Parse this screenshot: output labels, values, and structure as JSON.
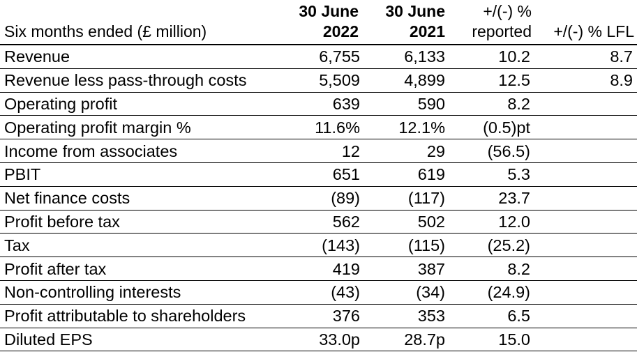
{
  "table": {
    "header": {
      "label": "Six months ended (£ million)",
      "col_2022": {
        "line1": "30 June",
        "line2": "2022"
      },
      "col_2021": {
        "line1": "30 June",
        "line2": "2021"
      },
      "col_reported": {
        "line1": "+/(-) %",
        "line2": "reported"
      },
      "col_lfl": {
        "line1": "",
        "line2": "+/(-) % LFL"
      }
    },
    "rows": [
      {
        "label": "Revenue",
        "y2022": "6,755",
        "y2021": "6,133",
        "reported": "10.2",
        "lfl": "8.7"
      },
      {
        "label": "Revenue less pass-through costs",
        "y2022": "5,509",
        "y2021": "4,899",
        "reported": "12.5",
        "lfl": "8.9"
      },
      {
        "label": "Operating profit",
        "y2022": "639",
        "y2021": "590",
        "reported": "8.2",
        "lfl": ""
      },
      {
        "label": "Operating profit margin %",
        "y2022": "11.6%",
        "y2021": "12.1%",
        "reported": "(0.5)pt",
        "lfl": ""
      },
      {
        "label": "Income from associates",
        "y2022": "12",
        "y2021": "29",
        "reported": "(56.5)",
        "lfl": ""
      },
      {
        "label": "PBIT",
        "y2022": "651",
        "y2021": "619",
        "reported": "5.3",
        "lfl": ""
      },
      {
        "label": "Net finance costs",
        "y2022": "(89)",
        "y2021": "(117)",
        "reported": "23.7",
        "lfl": ""
      },
      {
        "label": "Profit before tax",
        "y2022": "562",
        "y2021": "502",
        "reported": "12.0",
        "lfl": ""
      },
      {
        "label": "Tax",
        "y2022": "(143)",
        "y2021": "(115)",
        "reported": "(25.2)",
        "lfl": ""
      },
      {
        "label": "Profit after tax",
        "y2022": "419",
        "y2021": "387",
        "reported": "8.2",
        "lfl": ""
      },
      {
        "label": "Non-controlling interests",
        "y2022": "(43)",
        "y2021": "(34)",
        "reported": "(24.9)",
        "lfl": ""
      },
      {
        "label": "Profit attributable to shareholders",
        "y2022": "376",
        "y2021": "353",
        "reported": "6.5",
        "lfl": ""
      },
      {
        "label": "Diluted EPS",
        "y2022": "33.0p",
        "y2021": "28.7p",
        "reported": "15.0",
        "lfl": ""
      }
    ]
  }
}
